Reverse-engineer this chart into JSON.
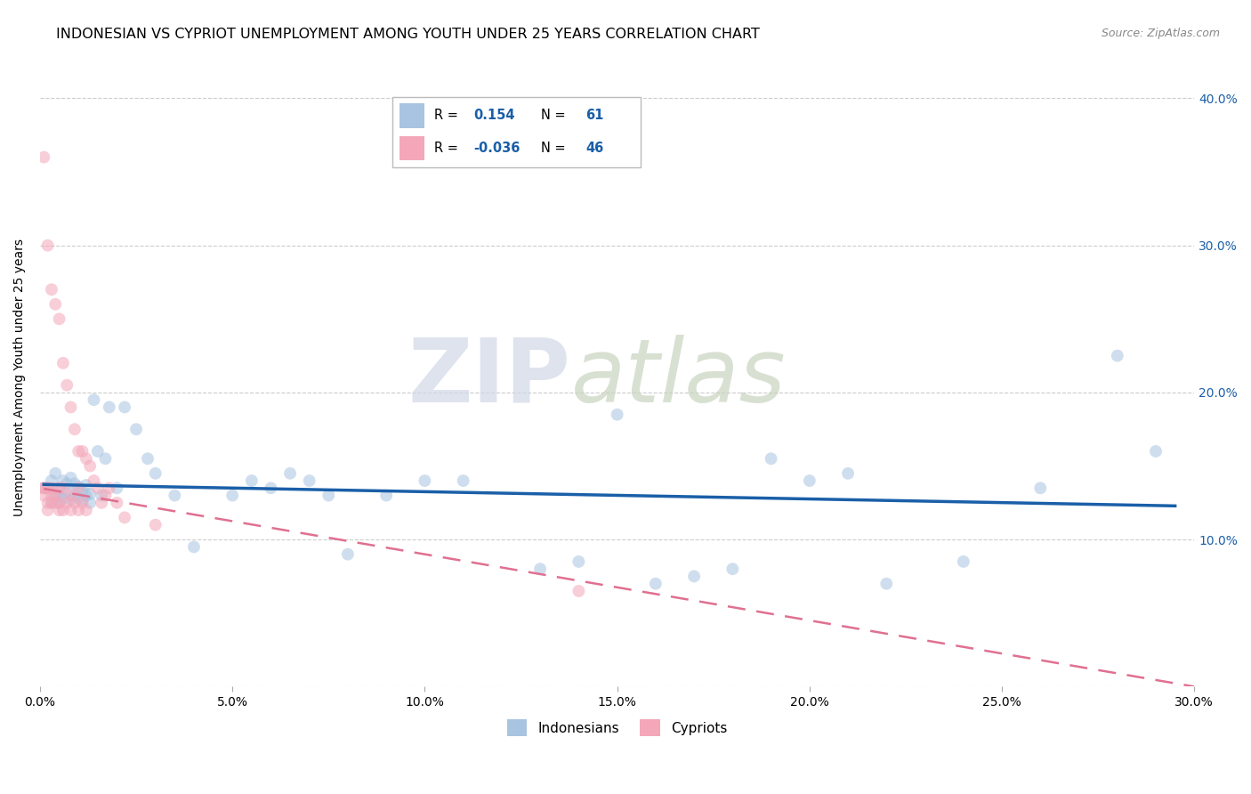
{
  "title": "INDONESIAN VS CYPRIOT UNEMPLOYMENT AMONG YOUTH UNDER 25 YEARS CORRELATION CHART",
  "source": "Source: ZipAtlas.com",
  "ylabel": "Unemployment Among Youth under 25 years",
  "watermark_zip": "ZIP",
  "watermark_atlas": "atlas",
  "legend_r1": "R =",
  "legend_v1": "0.154",
  "legend_n1": "N =",
  "legend_nv1": "61",
  "legend_r2": "R =",
  "legend_v2": "-0.036",
  "legend_n2": "N =",
  "legend_nv2": "46",
  "indonesian_color": "#a8c4e0",
  "cypriot_color": "#f4a7b9",
  "trend_indonesian_color": "#1a5fa8",
  "trend_cypriot_color": "#e07090",
  "xlim": [
    0.0,
    0.3
  ],
  "ylim": [
    0.0,
    0.42
  ],
  "xticks": [
    0.0,
    0.05,
    0.1,
    0.15,
    0.2,
    0.25,
    0.3
  ],
  "yticks": [
    0.0,
    0.1,
    0.2,
    0.3,
    0.4
  ],
  "xtick_labels": [
    "0.0%",
    "5.0%",
    "10.0%",
    "15.0%",
    "20.0%",
    "25.0%",
    "30.0%"
  ],
  "ytick_labels_right": [
    "",
    "10.0%",
    "20.0%",
    "30.0%",
    "40.0%"
  ],
  "indonesian_x": [
    0.001,
    0.002,
    0.003,
    0.003,
    0.004,
    0.004,
    0.005,
    0.005,
    0.005,
    0.006,
    0.006,
    0.007,
    0.007,
    0.008,
    0.008,
    0.009,
    0.009,
    0.01,
    0.01,
    0.011,
    0.011,
    0.012,
    0.012,
    0.013,
    0.013,
    0.014,
    0.015,
    0.016,
    0.017,
    0.018,
    0.02,
    0.022,
    0.025,
    0.028,
    0.03,
    0.035,
    0.04,
    0.05,
    0.055,
    0.06,
    0.065,
    0.07,
    0.075,
    0.08,
    0.09,
    0.1,
    0.11,
    0.13,
    0.14,
    0.15,
    0.16,
    0.17,
    0.18,
    0.19,
    0.2,
    0.21,
    0.22,
    0.24,
    0.26,
    0.28,
    0.29
  ],
  "indonesian_y": [
    0.135,
    0.135,
    0.14,
    0.125,
    0.13,
    0.145,
    0.13,
    0.135,
    0.125,
    0.14,
    0.128,
    0.132,
    0.138,
    0.142,
    0.127,
    0.13,
    0.138,
    0.136,
    0.128,
    0.133,
    0.127,
    0.13,
    0.137,
    0.131,
    0.125,
    0.195,
    0.16,
    0.13,
    0.155,
    0.19,
    0.135,
    0.19,
    0.175,
    0.155,
    0.145,
    0.13,
    0.095,
    0.13,
    0.14,
    0.135,
    0.145,
    0.14,
    0.13,
    0.09,
    0.13,
    0.14,
    0.14,
    0.08,
    0.085,
    0.185,
    0.07,
    0.075,
    0.08,
    0.155,
    0.14,
    0.145,
    0.07,
    0.085,
    0.135,
    0.225,
    0.16
  ],
  "cypriot_x": [
    0.001,
    0.001,
    0.001,
    0.001,
    0.002,
    0.002,
    0.002,
    0.002,
    0.003,
    0.003,
    0.003,
    0.003,
    0.004,
    0.004,
    0.004,
    0.005,
    0.005,
    0.005,
    0.005,
    0.006,
    0.006,
    0.006,
    0.007,
    0.007,
    0.008,
    0.008,
    0.008,
    0.009,
    0.009,
    0.01,
    0.01,
    0.01,
    0.011,
    0.011,
    0.012,
    0.012,
    0.013,
    0.014,
    0.015,
    0.016,
    0.017,
    0.018,
    0.02,
    0.022,
    0.03,
    0.14
  ],
  "cypriot_y": [
    0.36,
    0.135,
    0.135,
    0.13,
    0.3,
    0.135,
    0.125,
    0.12,
    0.27,
    0.135,
    0.13,
    0.125,
    0.26,
    0.13,
    0.125,
    0.25,
    0.135,
    0.125,
    0.12,
    0.22,
    0.135,
    0.12,
    0.205,
    0.125,
    0.19,
    0.13,
    0.12,
    0.175,
    0.125,
    0.16,
    0.135,
    0.12,
    0.16,
    0.125,
    0.155,
    0.12,
    0.15,
    0.14,
    0.135,
    0.125,
    0.13,
    0.135,
    0.125,
    0.115,
    0.11,
    0.065
  ],
  "background_color": "#ffffff",
  "grid_color": "#cccccc",
  "title_fontsize": 11.5,
  "axis_label_fontsize": 10,
  "tick_fontsize": 10,
  "value_color": "#1a5fa8",
  "marker_size": 100,
  "marker_alpha": 0.55
}
